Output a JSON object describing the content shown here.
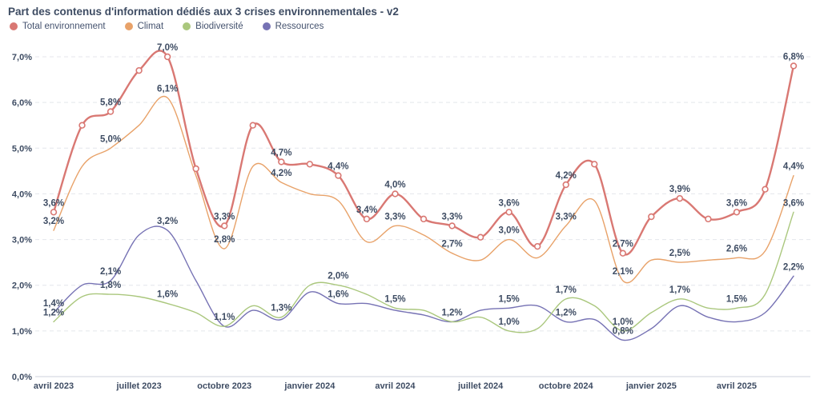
{
  "header": {
    "title": "Part des contenus d'information dédiés aux 3 crises environnementales - v2"
  },
  "colors": {
    "text": "#3e4c63",
    "axis_text": "#3e4c63",
    "grid": "#e4e6eb",
    "baseline": "#ccd2dd",
    "background": "#ffffff"
  },
  "chart_data": {
    "type": "line",
    "title": "Part des contenus d'information dédiés aux 3 crises environnementales - v2",
    "xlabel": "",
    "ylabel": "",
    "ylim": [
      0,
      7.3
    ],
    "grid": "horizontal-dashed",
    "legend_position": "top-left",
    "y_ticks": [
      "0,0%",
      "1,0%",
      "2,0%",
      "3,0%",
      "4,0%",
      "5,0%",
      "6,0%",
      "7,0%"
    ],
    "categories": [
      "avril 2023",
      "mai 2023",
      "juin 2023",
      "juillet 2023",
      "août 2023",
      "septembre 2023",
      "octobre 2023",
      "novembre 2023",
      "décembre 2023",
      "janvier 2024",
      "février 2024",
      "mars 2024",
      "avril 2024",
      "mai 2024",
      "juin 2024",
      "juillet 2024",
      "août 2024",
      "septembre 2024",
      "octobre 2024",
      "novembre 2024",
      "décembre 2024",
      "janvier 2025",
      "février 2025",
      "mars 2025",
      "avril 2025",
      "mai 2025",
      "juin 2025"
    ],
    "x_ticks": [
      {
        "index": 0,
        "label": "avril 2023"
      },
      {
        "index": 3,
        "label": "juillet 2023"
      },
      {
        "index": 6,
        "label": "octobre 2023"
      },
      {
        "index": 9,
        "label": "janvier 2024"
      },
      {
        "index": 12,
        "label": "avril 2024"
      },
      {
        "index": 15,
        "label": "juillet 2024"
      },
      {
        "index": 18,
        "label": "octobre 2024"
      },
      {
        "index": 21,
        "label": "janvier 2025"
      },
      {
        "index": 24,
        "label": "avril 2025"
      }
    ],
    "series": [
      {
        "name": "Total environnement",
        "color": "#d97873",
        "markers": true,
        "line_width": 2.4,
        "values": [
          3.6,
          5.5,
          5.8,
          6.7,
          7.0,
          4.55,
          3.3,
          5.5,
          4.7,
          4.65,
          4.4,
          3.45,
          4.0,
          3.45,
          3.3,
          3.05,
          3.6,
          2.85,
          4.2,
          4.65,
          2.7,
          3.5,
          3.9,
          3.45,
          3.6,
          4.1,
          6.8
        ],
        "labels": [
          "3,6%",
          null,
          "5,8%",
          null,
          "7,0%",
          null,
          "3,3%",
          null,
          "4,7%",
          null,
          "4,4%",
          "3,4%",
          "4,0%",
          null,
          "3,3%",
          null,
          "3,6%",
          null,
          "4,2%",
          null,
          "2,7%",
          null,
          "3,9%",
          null,
          "3,6%",
          null,
          "6,8%"
        ]
      },
      {
        "name": "Climat",
        "color": "#e8a269",
        "markers": false,
        "line_width": 1.4,
        "values": [
          3.2,
          4.6,
          5.0,
          5.5,
          6.1,
          4.4,
          2.8,
          4.6,
          4.25,
          4.0,
          3.85,
          2.95,
          3.3,
          3.1,
          2.7,
          2.55,
          3.0,
          2.6,
          3.3,
          3.85,
          2.1,
          2.55,
          2.5,
          2.55,
          2.6,
          2.75,
          4.4
        ],
        "labels": [
          "3,2%",
          null,
          "5,0%",
          null,
          "6,1%",
          null,
          "2,8%",
          null,
          "4,2%",
          null,
          null,
          null,
          "3,3%",
          null,
          "2,7%",
          null,
          "3,0%",
          null,
          "3,3%",
          null,
          "2,1%",
          null,
          "2,5%",
          null,
          "2,6%",
          null,
          "4,4%"
        ]
      },
      {
        "name": "Biodiversité",
        "color": "#aac77d",
        "markers": false,
        "line_width": 1.4,
        "values": [
          1.2,
          1.75,
          1.8,
          1.75,
          1.6,
          1.4,
          1.1,
          1.55,
          1.3,
          2.0,
          2.0,
          1.8,
          1.5,
          1.45,
          1.2,
          1.3,
          1.0,
          1.05,
          1.7,
          1.55,
          1.0,
          1.4,
          1.7,
          1.5,
          1.5,
          1.8,
          3.6
        ],
        "labels": [
          "1,2%",
          null,
          "1,8%",
          null,
          "1,6%",
          null,
          null,
          null,
          "1,3%",
          null,
          "2,0%",
          null,
          "1,5%",
          null,
          "1,2%",
          null,
          "1,0%",
          null,
          "1,7%",
          null,
          "1,0%",
          null,
          "1,7%",
          null,
          "1,5%",
          null,
          "3,6%"
        ]
      },
      {
        "name": "Ressources",
        "color": "#7672b4",
        "markers": false,
        "line_width": 1.4,
        "values": [
          1.4,
          2.0,
          2.1,
          3.1,
          3.2,
          2.1,
          1.1,
          1.45,
          1.25,
          1.85,
          1.6,
          1.6,
          1.45,
          1.35,
          1.2,
          1.45,
          1.5,
          1.55,
          1.2,
          1.25,
          0.8,
          1.05,
          1.55,
          1.3,
          1.2,
          1.4,
          2.2
        ],
        "labels": [
          "1,4%",
          null,
          "2,1%",
          null,
          "3,2%",
          null,
          "1,1%",
          null,
          null,
          null,
          "1,6%",
          null,
          null,
          null,
          null,
          null,
          "1,5%",
          null,
          "1,2%",
          null,
          "0,8%",
          null,
          null,
          null,
          null,
          null,
          "2,2%"
        ]
      }
    ]
  }
}
